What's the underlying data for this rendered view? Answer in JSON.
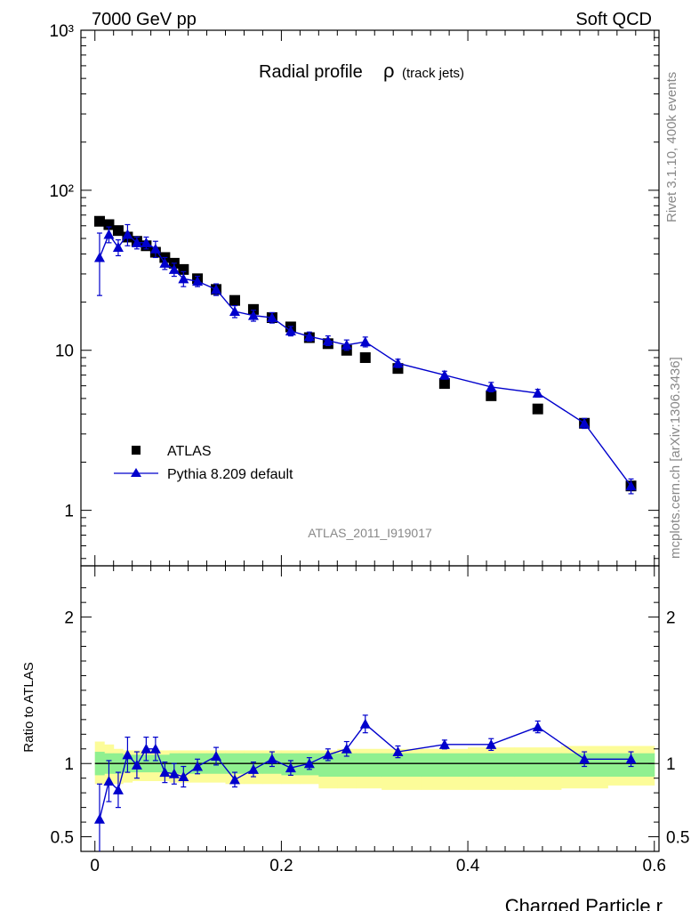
{
  "header": {
    "energy": "7000 GeV pp",
    "category": "Soft QCD"
  },
  "side": {
    "rivet": "Rivet 3.1.10,  400k events",
    "mcplots": "mcplots.cern.ch [arXiv:1306.3436]"
  },
  "analysis_id": "ATLAS_2011_I919017",
  "colors": {
    "mc": "#0000cc",
    "data": "#000000",
    "band_inner": "#90f090",
    "band_outer": "#fcfc99"
  },
  "chart_data": [
    {
      "type": "scatter",
      "title": "Radial profile",
      "title_symbol": "ρ",
      "title_suffix": "(track jets)",
      "xlabel": "Charged Particle r",
      "ylabel": "",
      "yscale": "log",
      "xlim": [
        -0.015,
        0.605
      ],
      "ylim": [
        0.45,
        1000
      ],
      "y_tick_labels": [
        "1",
        "10",
        "10²",
        "10³"
      ],
      "x": [
        0.005,
        0.015,
        0.025,
        0.035,
        0.045,
        0.055,
        0.065,
        0.075,
        0.085,
        0.095,
        0.11,
        0.13,
        0.15,
        0.17,
        0.19,
        0.21,
        0.23,
        0.25,
        0.27,
        0.29,
        0.325,
        0.375,
        0.425,
        0.475,
        0.525,
        0.575
      ],
      "series": [
        {
          "name": "ATLAS",
          "marker": "square",
          "values": [
            64,
            61,
            56,
            51,
            48,
            45,
            41,
            38,
            35,
            32,
            28,
            24,
            20.5,
            18,
            16,
            14,
            12,
            11,
            10,
            9,
            7.7,
            6.2,
            5.2,
            4.3,
            3.5,
            1.42
          ]
        },
        {
          "name": "Pythia 8.209 default",
          "marker": "triangle",
          "values": [
            38,
            53,
            44,
            53,
            47,
            47,
            43,
            35,
            32,
            28,
            27,
            24,
            17.5,
            16.5,
            16,
            13.2,
            12.2,
            11.5,
            10.8,
            11.3,
            8.3,
            7.0,
            5.9,
            5.4,
            3.5,
            1.42
          ],
          "err": [
            16,
            6,
            5,
            8,
            4,
            4,
            5,
            3,
            3,
            3,
            2,
            2,
            1.5,
            1.3,
            1.2,
            0.9,
            0.8,
            0.8,
            0.8,
            0.8,
            0.5,
            0.4,
            0.4,
            0.3,
            0.25,
            0.15
          ]
        }
      ],
      "legend": "lower-left"
    },
    {
      "type": "scatter",
      "ylabel": "Ratio to ATLAS",
      "xlabel": "Charged Particle r",
      "ylim": [
        0.4,
        2.35
      ],
      "y_tick_labels": [
        "0.5",
        "1",
        "2"
      ],
      "x_tick_labels": [
        "0",
        "0.2",
        "0.4",
        "0.6"
      ],
      "x": [
        0.005,
        0.015,
        0.025,
        0.035,
        0.045,
        0.055,
        0.065,
        0.075,
        0.085,
        0.095,
        0.11,
        0.13,
        0.15,
        0.17,
        0.19,
        0.21,
        0.23,
        0.25,
        0.27,
        0.29,
        0.325,
        0.375,
        0.425,
        0.475,
        0.525,
        0.575
      ],
      "ratio": [
        0.62,
        0.88,
        0.82,
        1.06,
        0.99,
        1.1,
        1.1,
        0.94,
        0.93,
        0.91,
        0.98,
        1.05,
        0.89,
        0.96,
        1.03,
        0.97,
        1.0,
        1.06,
        1.1,
        1.27,
        1.08,
        1.13,
        1.13,
        1.25,
        1.03,
        1.03
      ],
      "ratio_err": [
        0.24,
        0.14,
        0.12,
        0.12,
        0.09,
        0.08,
        0.08,
        0.07,
        0.07,
        0.07,
        0.05,
        0.06,
        0.05,
        0.05,
        0.05,
        0.05,
        0.04,
        0.04,
        0.05,
        0.06,
        0.04,
        0.03,
        0.04,
        0.04,
        0.05,
        0.05
      ],
      "band_inner": [
        [
          0.92,
          1.08
        ],
        [
          0.93,
          1.07
        ],
        [
          0.93,
          1.07
        ],
        [
          0.94,
          1.06
        ],
        [
          0.94,
          1.06
        ],
        [
          0.94,
          1.06
        ],
        [
          0.94,
          1.06
        ],
        [
          0.94,
          1.06
        ],
        [
          0.93,
          1.07
        ],
        [
          0.93,
          1.07
        ],
        [
          0.93,
          1.07
        ],
        [
          0.93,
          1.07
        ],
        [
          0.93,
          1.07
        ],
        [
          0.93,
          1.07
        ],
        [
          0.93,
          1.07
        ],
        [
          0.92,
          1.07
        ],
        [
          0.92,
          1.07
        ],
        [
          0.91,
          1.07
        ],
        [
          0.91,
          1.07
        ],
        [
          0.91,
          1.07
        ],
        [
          0.91,
          1.07
        ],
        [
          0.91,
          1.07
        ],
        [
          0.91,
          1.07
        ],
        [
          0.91,
          1.07
        ],
        [
          0.91,
          1.07
        ],
        [
          0.91,
          1.07
        ]
      ],
      "band_outer": [
        [
          0.86,
          1.15
        ],
        [
          0.86,
          1.13
        ],
        [
          0.86,
          1.1
        ],
        [
          0.87,
          1.09
        ],
        [
          0.88,
          1.09
        ],
        [
          0.88,
          1.09
        ],
        [
          0.88,
          1.09
        ],
        [
          0.88,
          1.09
        ],
        [
          0.87,
          1.09
        ],
        [
          0.87,
          1.09
        ],
        [
          0.87,
          1.09
        ],
        [
          0.87,
          1.09
        ],
        [
          0.86,
          1.09
        ],
        [
          0.86,
          1.09
        ],
        [
          0.86,
          1.09
        ],
        [
          0.86,
          1.09
        ],
        [
          0.86,
          1.09
        ],
        [
          0.83,
          1.09
        ],
        [
          0.83,
          1.1
        ],
        [
          0.83,
          1.1
        ],
        [
          0.82,
          1.1
        ],
        [
          0.82,
          1.1
        ],
        [
          0.82,
          1.11
        ],
        [
          0.82,
          1.11
        ],
        [
          0.83,
          1.12
        ],
        [
          0.85,
          1.12
        ]
      ]
    }
  ]
}
